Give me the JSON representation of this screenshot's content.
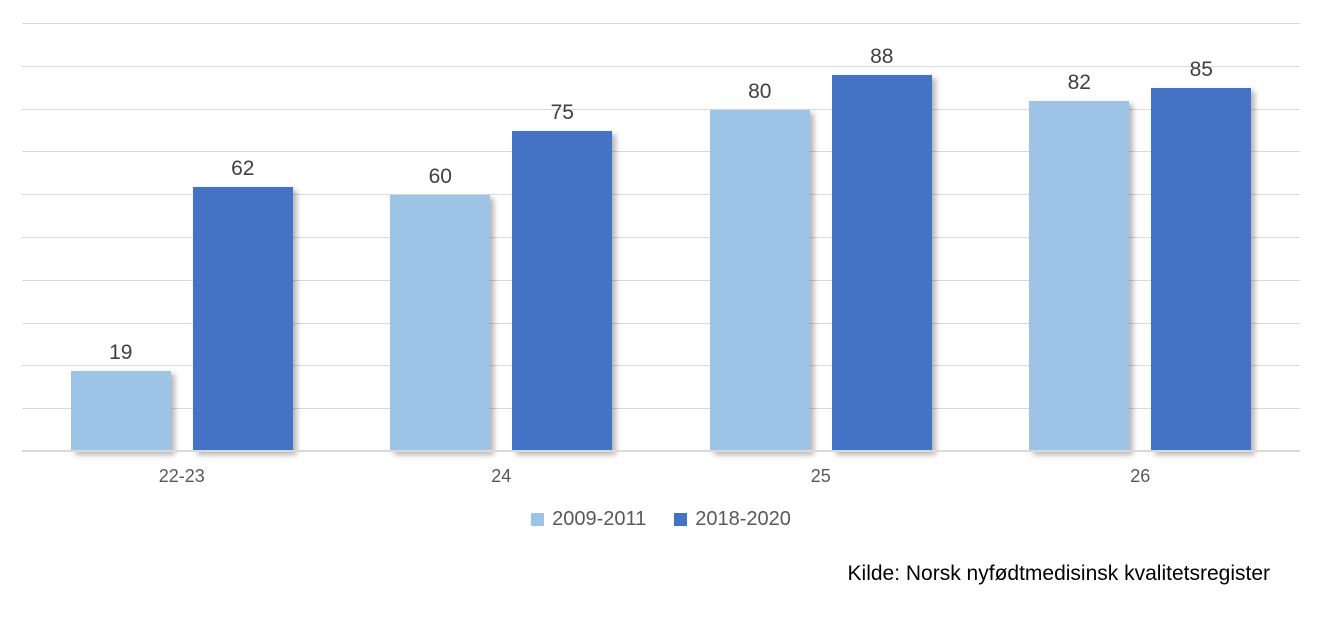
{
  "chart_data": {
    "type": "bar",
    "categories": [
      "22-23",
      "24",
      "25",
      "26"
    ],
    "series": [
      {
        "name": "2009-2011",
        "color": "#9dc3e6",
        "values": [
          19,
          60,
          80,
          82
        ]
      },
      {
        "name": "2018-2020",
        "color": "#4472c4",
        "values": [
          62,
          75,
          88,
          85
        ]
      }
    ],
    "title": "",
    "xlabel": "",
    "ylabel": "",
    "ylim": [
      0,
      100
    ],
    "gridline_step": 10,
    "grid": true,
    "legend_position": "bottom",
    "value_labels_shown": true,
    "source_note": "Kilde: Norsk nyfødtmedisinsk kvalitetsregister"
  },
  "colors": {
    "series_light_blue": "#9dc3e6",
    "series_dark_blue": "#4472c4",
    "gridline": "#d9d9d9",
    "value_label_text": "#404040",
    "axis_label_text": "#595959"
  }
}
